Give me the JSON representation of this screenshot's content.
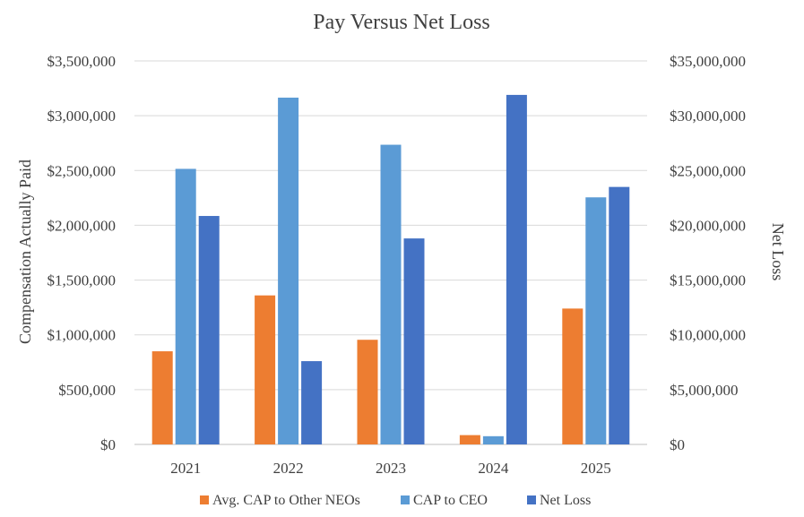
{
  "chart_data": {
    "type": "bar",
    "title": "Pay Versus Net Loss",
    "categories": [
      "2021",
      "2022",
      "2023",
      "2024",
      "2025"
    ],
    "ylabel": "Compensation Actually Paid",
    "y2label": "Net Loss",
    "ylim": [
      0,
      3500000
    ],
    "y2lim": [
      0,
      35000000
    ],
    "yticks": [
      "$0",
      "$500,000",
      "$1,000,000",
      "$1,500,000",
      "$2,000,000",
      "$2,500,000",
      "$3,000,000",
      "$3,500,000"
    ],
    "y2ticks": [
      "$0",
      "$5,000,000",
      "$10,000,000",
      "$15,000,000",
      "$20,000,000",
      "$25,000,000",
      "$30,000,000",
      "$35,000,000"
    ],
    "grid": true,
    "legend_position": "bottom",
    "series": [
      {
        "name": "Avg. CAP to Other NEOs",
        "axis": "left",
        "color": "#ED7D31",
        "values": [
          850000,
          1360000,
          955000,
          85000,
          1240000
        ]
      },
      {
        "name": "CAP to CEO",
        "axis": "left",
        "color": "#5B9BD5",
        "values": [
          2515000,
          3165000,
          2735000,
          75000,
          2255000
        ]
      },
      {
        "name": "Net Loss",
        "axis": "right",
        "color": "#4472C4",
        "values": [
          20850000,
          7600000,
          18800000,
          31900000,
          23500000
        ]
      }
    ]
  }
}
